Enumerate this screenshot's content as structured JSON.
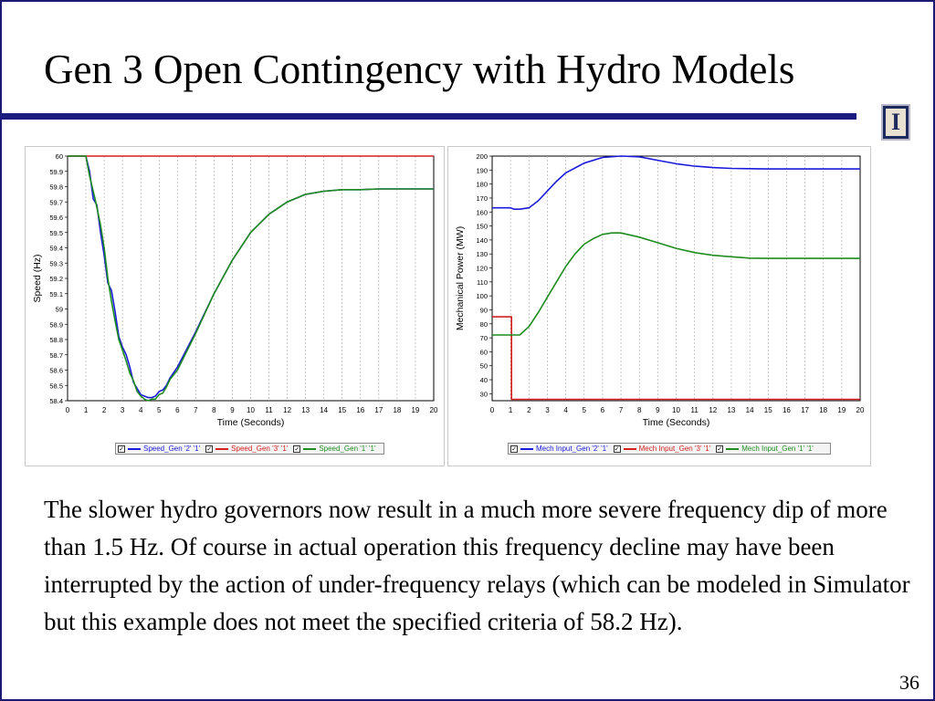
{
  "slide": {
    "title": "Gen 3 Open Contingency with Hydro Models",
    "body": "The slower hydro governors now result in a much more severe frequency dip of more than 1.5 Hz.  Of course in actual operation this frequency decline may have been interrupted by the action of under-frequency relays (which can be modeled in Simulator but this example does not meet the specified criteria of 58.2 Hz).",
    "page_number": "36",
    "logo_letter": "I"
  },
  "chart_data": [
    {
      "type": "line",
      "xlabel": "Time (Seconds)",
      "ylabel": "Speed (Hz)",
      "xlim": [
        0,
        20
      ],
      "ylim": [
        58.4,
        60
      ],
      "x_ticks": [
        0,
        1,
        2,
        3,
        4,
        5,
        6,
        7,
        8,
        9,
        10,
        11,
        12,
        13,
        14,
        15,
        16,
        17,
        18,
        19,
        20
      ],
      "y_ticks": [
        60,
        59.9,
        59.8,
        59.7,
        59.6,
        59.5,
        59.4,
        59.3,
        59.2,
        59.1,
        59,
        58.9,
        58.8,
        58.7,
        58.6,
        58.5,
        58.4
      ],
      "grid": "vertical",
      "legend": "bottom",
      "series": [
        {
          "name": "Speed_Gen '2' '1'",
          "color": "#1a1adc",
          "points": [
            [
              0,
              60
            ],
            [
              1,
              60
            ],
            [
              1.2,
              59.9
            ],
            [
              1.4,
              59.72
            ],
            [
              1.6,
              59.68
            ],
            [
              1.8,
              59.5
            ],
            [
              2.0,
              59.35
            ],
            [
              2.2,
              59.17
            ],
            [
              2.4,
              59.12
            ],
            [
              2.6,
              58.98
            ],
            [
              2.8,
              58.82
            ],
            [
              3.0,
              58.75
            ],
            [
              3.2,
              58.7
            ],
            [
              3.4,
              58.62
            ],
            [
              3.6,
              58.52
            ],
            [
              3.8,
              58.48
            ],
            [
              4.0,
              58.44
            ],
            [
              4.2,
              58.43
            ],
            [
              4.4,
              58.42
            ],
            [
              4.6,
              58.42
            ],
            [
              4.8,
              58.43
            ],
            [
              5.0,
              58.46
            ],
            [
              5.2,
              58.47
            ],
            [
              5.4,
              58.5
            ],
            [
              5.6,
              58.55
            ],
            [
              6,
              58.62
            ],
            [
              7,
              58.85
            ],
            [
              8,
              59.1
            ],
            [
              9,
              59.32
            ],
            [
              10,
              59.5
            ],
            [
              11,
              59.62
            ],
            [
              12,
              59.7
            ],
            [
              13,
              59.75
            ],
            [
              14,
              59.77
            ],
            [
              15,
              59.78
            ],
            [
              16,
              59.78
            ],
            [
              17,
              59.785
            ],
            [
              18,
              59.785
            ],
            [
              19,
              59.785
            ],
            [
              20,
              59.785
            ]
          ]
        },
        {
          "name": "Speed_Gen '3' '1'",
          "color": "#d42020",
          "points": [
            [
              0,
              60
            ],
            [
              20,
              60
            ]
          ]
        },
        {
          "name": "Speed_Gen '1' '1'",
          "color": "#1f8c1f",
          "points": [
            [
              0,
              60
            ],
            [
              1,
              60
            ],
            [
              1.2,
              59.87
            ],
            [
              1.5,
              59.72
            ],
            [
              1.8,
              59.55
            ],
            [
              2.0,
              59.4
            ],
            [
              2.2,
              59.2
            ],
            [
              2.4,
              59.05
            ],
            [
              2.6,
              58.92
            ],
            [
              2.8,
              58.8
            ],
            [
              3.0,
              58.73
            ],
            [
              3.2,
              58.66
            ],
            [
              3.4,
              58.58
            ],
            [
              3.6,
              58.53
            ],
            [
              3.8,
              58.46
            ],
            [
              4.0,
              58.43
            ],
            [
              4.2,
              58.41
            ],
            [
              4.4,
              58.4
            ],
            [
              4.6,
              58.41
            ],
            [
              4.8,
              58.41
            ],
            [
              5.0,
              58.44
            ],
            [
              5.2,
              58.45
            ],
            [
              5.4,
              58.49
            ],
            [
              5.6,
              58.54
            ],
            [
              6,
              58.6
            ],
            [
              7,
              58.84
            ],
            [
              8,
              59.1
            ],
            [
              9,
              59.32
            ],
            [
              10,
              59.5
            ],
            [
              11,
              59.62
            ],
            [
              12,
              59.7
            ],
            [
              13,
              59.75
            ],
            [
              14,
              59.77
            ],
            [
              15,
              59.78
            ],
            [
              16,
              59.78
            ],
            [
              17,
              59.785
            ],
            [
              18,
              59.785
            ],
            [
              19,
              59.785
            ],
            [
              20,
              59.785
            ]
          ]
        }
      ]
    },
    {
      "type": "line",
      "xlabel": "Time (Seconds)",
      "ylabel": "Mechanical Power (MW)",
      "xlim": [
        0,
        20
      ],
      "ylim": [
        25,
        200
      ],
      "x_ticks": [
        0,
        1,
        2,
        3,
        4,
        5,
        6,
        7,
        8,
        9,
        10,
        11,
        12,
        13,
        14,
        15,
        16,
        17,
        18,
        19,
        20
      ],
      "y_ticks": [
        200,
        190,
        180,
        170,
        160,
        150,
        140,
        130,
        120,
        110,
        100,
        90,
        80,
        70,
        60,
        50,
        40,
        30
      ],
      "grid": "vertical",
      "legend": "bottom",
      "series": [
        {
          "name": "Mech Input_Gen '2' '1'",
          "color": "#1a1adc",
          "points": [
            [
              0,
              163
            ],
            [
              1,
              163
            ],
            [
              1.2,
              162
            ],
            [
              1.5,
              162
            ],
            [
              2,
              163
            ],
            [
              2.5,
              168
            ],
            [
              3,
              175
            ],
            [
              3.5,
              182
            ],
            [
              4,
              188
            ],
            [
              5,
              195
            ],
            [
              6,
              199
            ],
            [
              7,
              200
            ],
            [
              8,
              199.5
            ],
            [
              9,
              197
            ],
            [
              10,
              194.5
            ],
            [
              11,
              192.8
            ],
            [
              12,
              191.8
            ],
            [
              13,
              191.2
            ],
            [
              14,
              191
            ],
            [
              15,
              190.8
            ],
            [
              16,
              190.8
            ],
            [
              17,
              190.8
            ],
            [
              18,
              190.8
            ],
            [
              19,
              190.8
            ],
            [
              20,
              190.8
            ]
          ]
        },
        {
          "name": "Mech Input_Gen '3' '1'",
          "color": "#d42020",
          "points": [
            [
              0,
              85
            ],
            [
              1.05,
              85
            ],
            [
              1.05,
              26
            ],
            [
              20,
              26
            ]
          ]
        },
        {
          "name": "Mech Input_Gen '1' '1'",
          "color": "#1f8c1f",
          "points": [
            [
              0,
              72
            ],
            [
              1,
              72
            ],
            [
              1.5,
              72
            ],
            [
              2,
              78
            ],
            [
              2.5,
              88
            ],
            [
              3,
              99
            ],
            [
              3.5,
              110
            ],
            [
              4,
              121
            ],
            [
              4.5,
              130
            ],
            [
              5,
              137
            ],
            [
              5.5,
              141
            ],
            [
              6,
              144
            ],
            [
              6.5,
              145
            ],
            [
              7,
              145
            ],
            [
              8,
              142
            ],
            [
              9,
              138
            ],
            [
              10,
              134
            ],
            [
              11,
              131
            ],
            [
              12,
              129
            ],
            [
              13,
              128
            ],
            [
              14,
              127
            ],
            [
              15,
              126.8
            ],
            [
              16,
              126.8
            ],
            [
              17,
              126.8
            ],
            [
              18,
              126.8
            ],
            [
              19,
              126.8
            ],
            [
              20,
              126.8
            ]
          ]
        }
      ]
    }
  ]
}
